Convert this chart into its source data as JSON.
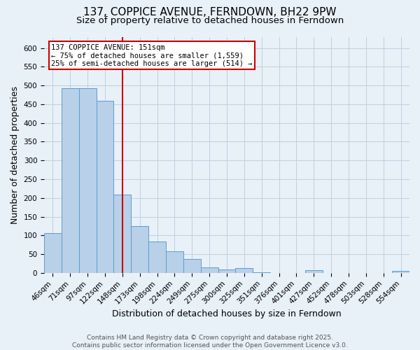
{
  "title": "137, COPPICE AVENUE, FERNDOWN, BH22 9PW",
  "subtitle": "Size of property relative to detached houses in Ferndown",
  "xlabel": "Distribution of detached houses by size in Ferndown",
  "ylabel": "Number of detached properties",
  "categories": [
    "46sqm",
    "71sqm",
    "97sqm",
    "122sqm",
    "148sqm",
    "173sqm",
    "198sqm",
    "224sqm",
    "249sqm",
    "275sqm",
    "300sqm",
    "325sqm",
    "351sqm",
    "376sqm",
    "401sqm",
    "427sqm",
    "452sqm",
    "478sqm",
    "503sqm",
    "528sqm",
    "554sqm"
  ],
  "values": [
    107,
    493,
    493,
    460,
    209,
    124,
    84,
    57,
    38,
    15,
    10,
    13,
    2,
    0,
    0,
    8,
    0,
    0,
    0,
    0,
    6
  ],
  "bar_color": "#b8d0e8",
  "bar_edge_color": "#5a9fd4",
  "vline_index": 4.0,
  "annotation_title": "137 COPPICE AVENUE: 151sqm",
  "annotation_line1": "← 75% of detached houses are smaller (1,559)",
  "annotation_line2": "25% of semi-detached houses are larger (514) →",
  "annotation_box_color": "#ffffff",
  "annotation_box_edge": "#cc0000",
  "vline_color": "#cc0000",
  "grid_color": "#c0d0e0",
  "background_color": "#e8f0f8",
  "ylim": [
    0,
    630
  ],
  "yticks": [
    0,
    50,
    100,
    150,
    200,
    250,
    300,
    350,
    400,
    450,
    500,
    550,
    600
  ],
  "footer_line1": "Contains HM Land Registry data © Crown copyright and database right 2025.",
  "footer_line2": "Contains public sector information licensed under the Open Government Licence v3.0.",
  "title_fontsize": 11,
  "subtitle_fontsize": 9.5,
  "axis_label_fontsize": 9,
  "tick_fontsize": 7.5,
  "annotation_fontsize": 7.5,
  "footer_fontsize": 6.5
}
